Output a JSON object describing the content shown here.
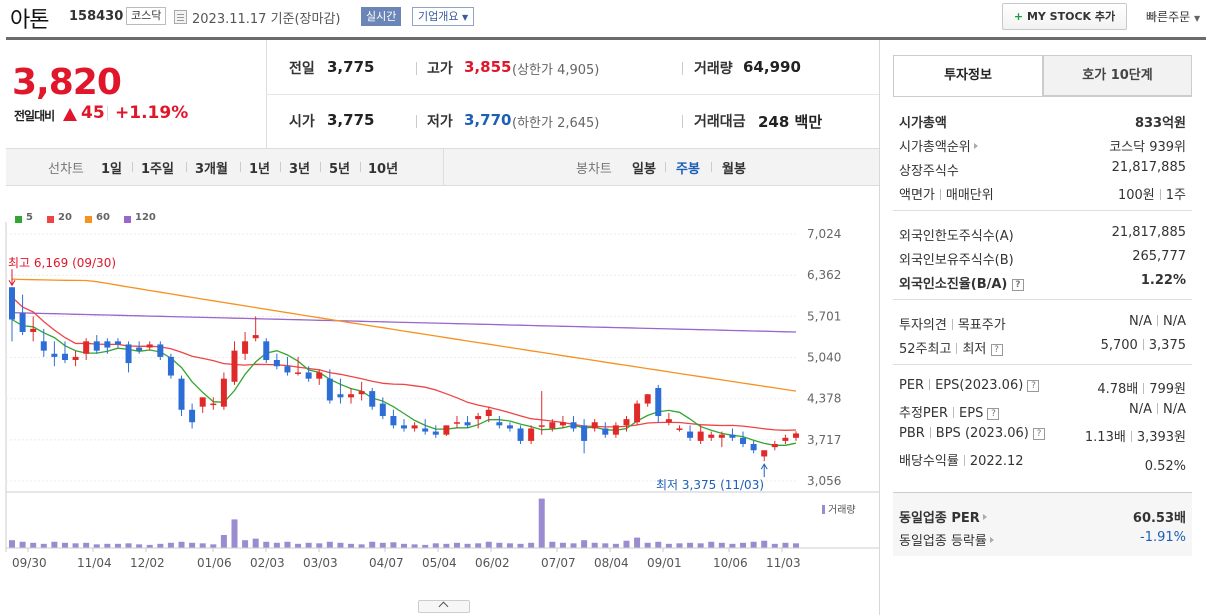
{
  "header": {
    "stock_name": "아톤",
    "stock_code": "158430",
    "market": "코스닥",
    "date_text": "2023.11.17  기준(장마감)",
    "realtime_label": "실시간",
    "overview_label": "기업개요",
    "mystock_label": "MY STOCK 추가",
    "quick_order_label": "빠른주문"
  },
  "price": {
    "current": "3,820",
    "change_label": "전일대비",
    "change_value": "45",
    "change_pct": "+1.19%"
  },
  "stats": {
    "prev_close_label": "전일",
    "prev_close": "3,775",
    "high_label": "고가",
    "high": "3,855",
    "upper_limit": "(상한가 4,905)",
    "volume_label": "거래량",
    "volume": "64,990",
    "open_label": "시가",
    "open": "3,775",
    "low_label": "저가",
    "low": "3,770",
    "lower_limit": "(하한가 2,645)",
    "amount_label": "거래대금",
    "amount": "248 백만"
  },
  "period_bar": {
    "line_label": "선차트",
    "line_periods": [
      "1일",
      "1주일",
      "3개월",
      "1년",
      "3년",
      "5년",
      "10년"
    ],
    "candle_label": "봉차트",
    "candle_periods": [
      "일봉",
      "주봉",
      "월봉"
    ],
    "candle_active": "주봉"
  },
  "legend": [
    {
      "label": "5",
      "color": "#33a532"
    },
    {
      "label": "20",
      "color": "#ef4444"
    },
    {
      "label": "60",
      "color": "#f6921e"
    },
    {
      "label": "120",
      "color": "#9966cc"
    }
  ],
  "chart_annotations": {
    "high_label": "최고 6,169 (09/30)",
    "low_label": "최저 3,375 (11/03)",
    "volume_label": "거래량"
  },
  "chart_data": {
    "type": "candlestick",
    "y_ticks": [
      "7,024",
      "6,362",
      "5,701",
      "5,040",
      "4,378",
      "3,717",
      "3,056"
    ],
    "ylim": [
      3056,
      7024
    ],
    "x_ticks": [
      "09/30",
      "11/04",
      "12/02",
      "01/06",
      "02/03",
      "03/03",
      "04/07",
      "05/04",
      "06/02",
      "07/07",
      "08/04",
      "09/01",
      "10/06",
      "11/03"
    ],
    "high_point": {
      "value": 6169,
      "date": "09/30"
    },
    "low_point": {
      "value": 3375,
      "date": "11/03"
    },
    "candles": [
      [
        6169,
        6169,
        5300,
        5650
      ],
      [
        5750,
        6050,
        5400,
        5450
      ],
      [
        5450,
        5700,
        5300,
        5500
      ],
      [
        5300,
        5500,
        5050,
        5150
      ],
      [
        5100,
        5300,
        4900,
        5050
      ],
      [
        5100,
        5300,
        4950,
        5000
      ],
      [
        5000,
        5150,
        4900,
        5050
      ],
      [
        5100,
        5350,
        5000,
        5300
      ],
      [
        5300,
        5400,
        5100,
        5150
      ],
      [
        5300,
        5350,
        5100,
        5200
      ],
      [
        5300,
        5350,
        5200,
        5250
      ],
      [
        5250,
        5300,
        4800,
        4950
      ],
      [
        5200,
        5300,
        5100,
        5150
      ],
      [
        5200,
        5300,
        5150,
        5250
      ],
      [
        5250,
        5300,
        5000,
        5050
      ],
      [
        5050,
        5100,
        4700,
        4750
      ],
      [
        4700,
        4750,
        4100,
        4200
      ],
      [
        4200,
        4300,
        3900,
        4000
      ],
      [
        4250,
        4400,
        4150,
        4400
      ],
      [
        4300,
        4400,
        4200,
        4300
      ],
      [
        4250,
        4800,
        4200,
        4700
      ],
      [
        4650,
        5300,
        4600,
        5150
      ],
      [
        5100,
        5450,
        5000,
        5300
      ],
      [
        5350,
        5700,
        5300,
        5400
      ],
      [
        5300,
        5350,
        4950,
        5000
      ],
      [
        5000,
        5100,
        4850,
        4900
      ],
      [
        4900,
        5050,
        4750,
        4800
      ],
      [
        4800,
        5050,
        4750,
        4800
      ],
      [
        4800,
        4900,
        4650,
        4700
      ],
      [
        4700,
        4850,
        4600,
        4800
      ],
      [
        4700,
        4850,
        4300,
        4350
      ],
      [
        4450,
        4700,
        4300,
        4400
      ],
      [
        4400,
        4550,
        4300,
        4450
      ],
      [
        4450,
        4650,
        4350,
        4500
      ],
      [
        4500,
        4550,
        4200,
        4250
      ],
      [
        4300,
        4400,
        4050,
        4100
      ],
      [
        4100,
        4200,
        3900,
        3950
      ],
      [
        3950,
        4050,
        3850,
        3900
      ],
      [
        3900,
        4000,
        3850,
        3950
      ],
      [
        3900,
        4050,
        3800,
        3850
      ],
      [
        3850,
        3950,
        3750,
        3800
      ],
      [
        3800,
        3950,
        3780,
        3950
      ],
      [
        4000,
        4100,
        3900,
        4000
      ],
      [
        4000,
        4100,
        3900,
        3950
      ],
      [
        4050,
        4150,
        3900,
        4100
      ],
      [
        4100,
        4250,
        4000,
        4200
      ],
      [
        4000,
        4100,
        3900,
        3950
      ],
      [
        3950,
        4000,
        3850,
        3900
      ],
      [
        3900,
        3950,
        3650,
        3700
      ],
      [
        3700,
        3950,
        3650,
        3900
      ],
      [
        3950,
        4500,
        3800,
        3950
      ],
      [
        3900,
        4050,
        3850,
        4000
      ],
      [
        3950,
        4100,
        3900,
        4000
      ],
      [
        4000,
        4100,
        3850,
        3900
      ],
      [
        3950,
        4050,
        3500,
        3700
      ],
      [
        3900,
        4050,
        3850,
        4000
      ],
      [
        3900,
        4000,
        3750,
        3800
      ],
      [
        3800,
        4000,
        3750,
        3950
      ],
      [
        3950,
        4100,
        3850,
        4050
      ],
      [
        4000,
        4350,
        3950,
        4300
      ],
      [
        4300,
        4450,
        4250,
        4450
      ],
      [
        4550,
        4600,
        4000,
        4100
      ],
      [
        4000,
        4150,
        3950,
        4050
      ],
      [
        3900,
        3950,
        3850,
        3900
      ],
      [
        3850,
        3950,
        3700,
        3750
      ],
      [
        3700,
        3950,
        3650,
        3850
      ],
      [
        3750,
        3850,
        3700,
        3800
      ],
      [
        3750,
        3850,
        3600,
        3800
      ],
      [
        3800,
        3900,
        3700,
        3750
      ],
      [
        3750,
        3850,
        3600,
        3650
      ],
      [
        3650,
        3700,
        3500,
        3550
      ],
      [
        3450,
        3550,
        3375,
        3550
      ],
      [
        3600,
        3700,
        3550,
        3650
      ],
      [
        3700,
        3800,
        3650,
        3750
      ],
      [
        3750,
        3855,
        3700,
        3820
      ]
    ]
  },
  "right_panel": {
    "tab_invest": "투자정보",
    "tab_quote": "호가 10단계",
    "market_cap_label": "시가총액",
    "market_cap": "833억원",
    "market_cap_rank_label": "시가총액순위",
    "market_cap_rank": "코스닥 939위",
    "shares_label": "상장주식수",
    "shares": "21,817,885",
    "par_label": "액면가",
    "par_unit_label": "매매단위",
    "par": "100원",
    "unit": "1주",
    "foreign_limit_label": "외국인한도주식수(A)",
    "foreign_limit": "21,817,885",
    "foreign_hold_label": "외국인보유주식수(B)",
    "foreign_hold": "265,777",
    "foreign_ratio_label": "외국인소진율(B/A)",
    "foreign_ratio": "1.22%",
    "opinion_label": "투자의견",
    "target_label": "목표주가",
    "opinion": "N/A",
    "target": "N/A",
    "w52_high_label": "52주최고",
    "w52_low_label": "최저",
    "w52_high": "5,700",
    "w52_low": "3,375",
    "per_label": "PER",
    "eps_label": "EPS(2023.06)",
    "per": "4.78배",
    "eps": "799원",
    "est_per_label": "추정PER",
    "est_eps_label": "EPS",
    "est_per": "N/A",
    "est_eps": "N/A",
    "pbr_label": "PBR",
    "bps_label": "BPS (2023.06)",
    "pbr": "1.13배",
    "bps": "3,393원",
    "div_label": "배당수익률",
    "div_year": "2022.12",
    "div": "0.52%",
    "sector_per_label": "동일업종 PER",
    "sector_per": "60.53배",
    "sector_chg_label": "동일업종 등락률",
    "sector_chg": "-1.91%"
  }
}
